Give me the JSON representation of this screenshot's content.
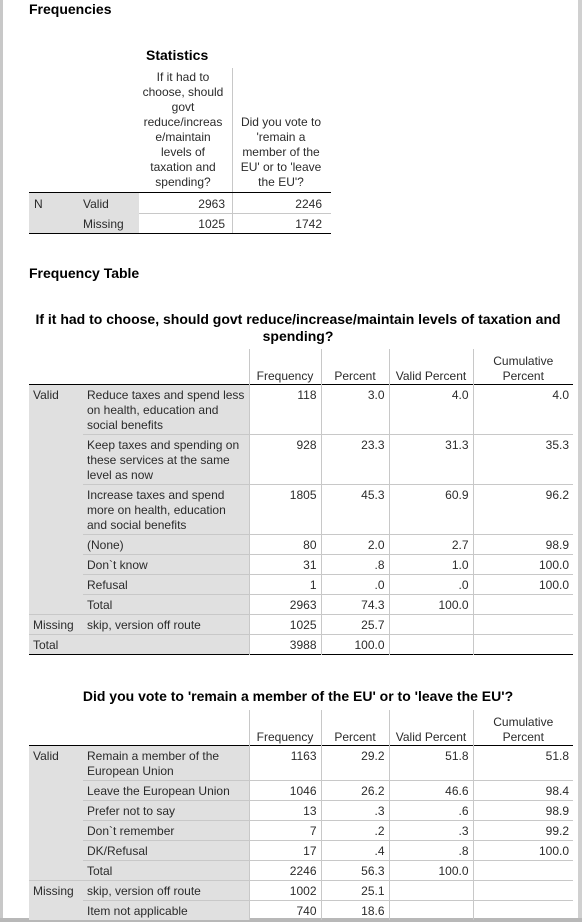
{
  "headings": {
    "frequencies": "Frequencies",
    "frequency_table": "Frequency Table"
  },
  "statistics": {
    "title": "Statistics",
    "col1": "If it had to choose, should govt reduce/increas e/maintain levels of taxation and spending?",
    "col2": "Did you vote to 'remain a member of the EU' or to 'leave the EU'?",
    "row_n": "N",
    "valid_label": "Valid",
    "missing_label": "Missing",
    "valid_values": [
      "2963",
      "2246"
    ],
    "missing_values": [
      "1025",
      "1742"
    ]
  },
  "table1": {
    "title": "If it had to choose, should govt reduce/increase/maintain levels of taxation and spending?",
    "headers": [
      "Frequency",
      "Percent",
      "Valid Percent",
      "Cumulative Percent"
    ],
    "group_valid": "Valid",
    "group_missing": "Missing",
    "group_total": "Total",
    "rows": [
      {
        "label": "Reduce taxes and spend less on health, education and social benefits",
        "freq": "118",
        "pct": "3.0",
        "valid": "4.0",
        "cum": "4.0"
      },
      {
        "label": "Keep taxes and spending on these services at the same level as now",
        "freq": "928",
        "pct": "23.3",
        "valid": "31.3",
        "cum": "35.3"
      },
      {
        "label": "Increase taxes and spend more on health, education and social benefits",
        "freq": "1805",
        "pct": "45.3",
        "valid": "60.9",
        "cum": "96.2"
      },
      {
        "label": "(None)",
        "freq": "80",
        "pct": "2.0",
        "valid": "2.7",
        "cum": "98.9"
      },
      {
        "label": "Don`t know",
        "freq": "31",
        "pct": ".8",
        "valid": "1.0",
        "cum": "100.0"
      },
      {
        "label": "Refusal",
        "freq": "1",
        "pct": ".0",
        "valid": ".0",
        "cum": "100.0"
      },
      {
        "label": "Total",
        "freq": "2963",
        "pct": "74.3",
        "valid": "100.0",
        "cum": ""
      }
    ],
    "missing_row": {
      "label": "skip, version off route",
      "freq": "1025",
      "pct": "25.7"
    },
    "total_row": {
      "freq": "3988",
      "pct": "100.0"
    }
  },
  "table2": {
    "title": "Did you vote to 'remain a member of the EU' or to 'leave the EU'?",
    "headers": [
      "Frequency",
      "Percent",
      "Valid Percent",
      "Cumulative Percent"
    ],
    "group_valid": "Valid",
    "group_missing": "Missing",
    "rows": [
      {
        "label": "Remain a member of the European Union",
        "freq": "1163",
        "pct": "29.2",
        "valid": "51.8",
        "cum": "51.8"
      },
      {
        "label": "Leave the European Union",
        "freq": "1046",
        "pct": "26.2",
        "valid": "46.6",
        "cum": "98.4"
      },
      {
        "label": "Prefer not to say",
        "freq": "13",
        "pct": ".3",
        "valid": ".6",
        "cum": "98.9"
      },
      {
        "label": "Don`t remember",
        "freq": "7",
        "pct": ".2",
        "valid": ".3",
        "cum": "99.2"
      },
      {
        "label": "DK/Refusal",
        "freq": "17",
        "pct": ".4",
        "valid": ".8",
        "cum": "100.0"
      },
      {
        "label": "Total",
        "freq": "2246",
        "pct": "56.3",
        "valid": "100.0",
        "cum": ""
      }
    ],
    "missing_rows": [
      {
        "label": "skip, version off route",
        "freq": "1002",
        "pct": "25.1"
      },
      {
        "label": "Item not applicable",
        "freq": "740",
        "pct": "18.6"
      }
    ]
  }
}
